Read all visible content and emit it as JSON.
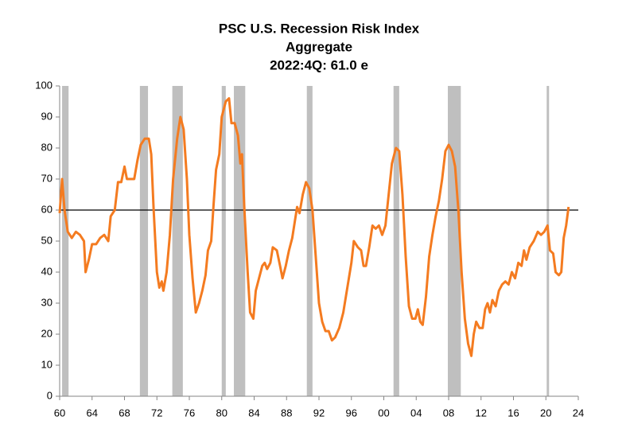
{
  "chart_data": {
    "type": "line",
    "title": "PSC U.S. Recession Risk Index",
    "subtitle": "Aggregate",
    "annotation": "2022:4Q: 61.0 e",
    "xlim": [
      1960,
      2024
    ],
    "xticks": [
      {
        "value": 1960,
        "label": "60"
      },
      {
        "value": 1964,
        "label": "64"
      },
      {
        "value": 1968,
        "label": "68"
      },
      {
        "value": 1972,
        "label": "72"
      },
      {
        "value": 1976,
        "label": "76"
      },
      {
        "value": 1980,
        "label": "80"
      },
      {
        "value": 1984,
        "label": "84"
      },
      {
        "value": 1988,
        "label": "88"
      },
      {
        "value": 1992,
        "label": "92"
      },
      {
        "value": 1996,
        "label": "96"
      },
      {
        "value": 2000,
        "label": "00"
      },
      {
        "value": 2004,
        "label": "04"
      },
      {
        "value": 2008,
        "label": "08"
      },
      {
        "value": 2012,
        "label": "12"
      },
      {
        "value": 2016,
        "label": "16"
      },
      {
        "value": 2020,
        "label": "20"
      },
      {
        "value": 2024,
        "label": "24"
      }
    ],
    "ylim": [
      0,
      100
    ],
    "yticks": [
      0,
      10,
      20,
      30,
      40,
      50,
      60,
      70,
      80,
      90,
      100
    ],
    "reference_line": 60,
    "recessions": [
      [
        1960.3,
        1961.1
      ],
      [
        1969.9,
        1970.9
      ],
      [
        1973.9,
        1975.2
      ],
      [
        1980.0,
        1980.5
      ],
      [
        1981.5,
        1982.9
      ],
      [
        1990.5,
        1991.2
      ],
      [
        2001.2,
        2001.9
      ],
      [
        2007.9,
        2009.5
      ],
      [
        2020.1,
        2020.3
      ]
    ],
    "recession_color": "#bfbfbf",
    "series": [
      {
        "color": "#f47b20",
        "x": [
          1960.0,
          1960.3,
          1960.6,
          1961,
          1961.5,
          1962,
          1962.5,
          1963,
          1963.2,
          1963.6,
          1964,
          1964.5,
          1965,
          1965.5,
          1966,
          1966.3,
          1966.8,
          1967.2,
          1967.6,
          1968,
          1968.3,
          1968.8,
          1969.2,
          1969.6,
          1970,
          1970.5,
          1971,
          1971.3,
          1971.6,
          1972,
          1972.3,
          1972.6,
          1972.8,
          1973.2,
          1973.6,
          1974,
          1974.5,
          1974.9,
          1975.3,
          1975.7,
          1976,
          1976.4,
          1976.8,
          1977.2,
          1977.6,
          1978,
          1978.3,
          1978.7,
          1979,
          1979.3,
          1979.7,
          1980,
          1980.5,
          1980.9,
          1981.2,
          1981.6,
          1982,
          1982.3,
          1982.5,
          1982.8,
          1983.2,
          1983.5,
          1983.9,
          1984.2,
          1984.6,
          1985,
          1985.3,
          1985.6,
          1986,
          1986.3,
          1986.8,
          1987.2,
          1987.5,
          1987.9,
          1988.3,
          1988.7,
          1989,
          1989.3,
          1989.6,
          1990,
          1990.4,
          1990.8,
          1991.2,
          1991.6,
          1992,
          1992.4,
          1992.8,
          1993.2,
          1993.6,
          1994,
          1994.5,
          1995,
          1995.5,
          1996,
          1996.3,
          1996.8,
          1997.2,
          1997.5,
          1997.8,
          1998.2,
          1998.6,
          1999,
          1999.4,
          1999.8,
          2000.2,
          2000.6,
          2001,
          2001.5,
          2001.9,
          2002.3,
          2002.7,
          2003.1,
          2003.5,
          2003.9,
          2004.2,
          2004.5,
          2004.8,
          2005.2,
          2005.6,
          2006,
          2006.4,
          2006.8,
          2007.2,
          2007.6,
          2008,
          2008.4,
          2008.8,
          2009.2,
          2009.6,
          2010,
          2010.4,
          2010.8,
          2011.1,
          2011.4,
          2011.8,
          2012.2,
          2012.5,
          2012.8,
          2013.1,
          2013.4,
          2013.8,
          2014.2,
          2014.6,
          2015,
          2015.4,
          2015.8,
          2016.2,
          2016.6,
          2017,
          2017.3,
          2017.6,
          2018,
          2018.5,
          2019,
          2019.4,
          2019.8,
          2020.2,
          2020.5,
          2020.9,
          2021.2,
          2021.6,
          2021.9,
          2022.2,
          2022.5,
          2022.8
        ],
        "values": [
          59,
          70,
          60,
          53,
          51,
          53,
          52,
          50,
          40,
          44,
          49,
          49,
          51,
          52,
          50,
          58,
          60,
          69,
          69,
          74,
          70,
          70,
          70,
          76,
          81,
          83,
          83,
          78,
          60,
          40,
          35,
          37,
          34,
          40,
          52,
          70,
          83,
          90,
          86,
          70,
          52,
          38,
          27,
          30,
          34,
          39,
          47,
          50,
          62,
          73,
          78,
          90,
          95,
          96,
          88,
          88,
          84,
          75,
          78,
          60,
          40,
          27,
          25,
          34,
          38,
          42,
          43,
          41,
          43,
          48,
          47,
          42,
          38,
          42,
          47,
          51,
          56,
          61,
          59,
          65,
          69,
          67,
          60,
          45,
          30,
          24,
          21,
          21,
          18,
          19,
          22,
          27,
          35,
          43,
          50,
          48,
          47,
          42,
          42,
          48,
          55,
          54,
          55,
          52,
          55,
          65,
          75,
          80,
          79,
          65,
          45,
          29,
          25,
          25,
          28,
          24,
          23,
          32,
          45,
          52,
          58,
          63,
          70,
          79,
          81,
          79,
          74,
          60,
          40,
          25,
          17,
          13,
          20,
          24,
          22,
          22,
          28,
          30,
          27,
          31,
          29,
          34,
          36,
          37,
          36,
          40,
          38,
          43,
          42,
          47,
          44,
          48,
          50,
          53,
          52,
          53,
          55,
          47,
          46,
          40,
          39,
          40,
          51,
          55,
          61
        ]
      }
    ]
  }
}
